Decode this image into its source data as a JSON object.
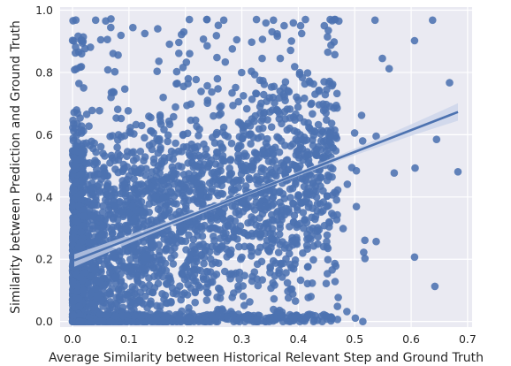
{
  "chart_data": {
    "type": "scatter",
    "title": "",
    "xlabel": "Average Similarity between Historical Relevant Step and Ground Truth",
    "ylabel": "Similarity between Prediction and Ground Truth",
    "xlim": [
      -0.022,
      0.708
    ],
    "ylim": [
      -0.018,
      1.01
    ],
    "xticks": [
      0.0,
      0.1,
      0.2,
      0.3,
      0.4,
      0.5,
      0.6,
      0.7
    ],
    "xtick_labels": [
      "0.0",
      "0.1",
      "0.2",
      "0.3",
      "0.4",
      "0.5",
      "0.6",
      "0.7"
    ],
    "yticks": [
      0.0,
      0.2,
      0.4,
      0.6,
      0.8,
      1.0
    ],
    "ytick_labels": [
      "0.0",
      "0.2",
      "0.4",
      "0.6",
      "0.8",
      "1.0"
    ],
    "grid": true,
    "legend": "none",
    "colors": {
      "background": "#EAEAF2",
      "grid": "#FFFFFF",
      "points": "#4C72B0",
      "fit_band": "#4C72B0"
    },
    "regression": {
      "x": [
        0.003,
        0.683
      ],
      "y": [
        0.196,
        0.673
      ],
      "ci_halfwidth_at_ends": [
        0.014,
        0.022
      ]
    },
    "points": {
      "approx_count": 3500,
      "random_seed": 7,
      "highlights": [
        [
          0.683,
          0.481
        ],
        [
          0.668,
          0.767
        ],
        [
          0.645,
          0.585
        ],
        [
          0.642,
          0.113
        ],
        [
          0.638,
          0.968
        ],
        [
          0.606,
          0.207
        ],
        [
          0.606,
          0.902
        ],
        [
          0.607,
          0.493
        ],
        [
          0.57,
          0.477
        ],
        [
          0.561,
          0.812
        ],
        [
          0.549,
          0.845
        ],
        [
          0.538,
          0.257
        ],
        [
          0.538,
          0.595
        ],
        [
          0.536,
          0.968
        ],
        [
          0.518,
          0.261
        ],
        [
          0.514,
          0.58
        ],
        [
          0.503,
          0.369
        ],
        [
          0.501,
          0.011
        ],
        [
          0.487,
          0.441
        ],
        [
          0.472,
          0.965
        ],
        [
          0.46,
          0.966
        ],
        [
          0.446,
          0.95
        ],
        [
          0.434,
          0.378
        ],
        [
          0.427,
          0.763
        ],
        [
          0.406,
          0.925
        ],
        [
          0.375,
          0.95
        ],
        [
          0.368,
          0.845
        ],
        [
          0.356,
          0.968
        ],
        [
          0.336,
          0.845
        ],
        [
          0.326,
          0.97
        ],
        [
          0.291,
          0.905
        ],
        [
          0.268,
          0.968
        ],
        [
          0.238,
          0.97
        ],
        [
          0.232,
          0.907
        ],
        [
          0.207,
          0.97
        ],
        [
          0.151,
          0.94
        ],
        [
          0.128,
          0.925
        ],
        [
          0.107,
          0.944
        ],
        [
          0.068,
          0.972
        ],
        [
          0.05,
          0.905
        ],
        [
          0.041,
          0.968
        ],
        [
          0.016,
          0.86
        ]
      ]
    }
  }
}
